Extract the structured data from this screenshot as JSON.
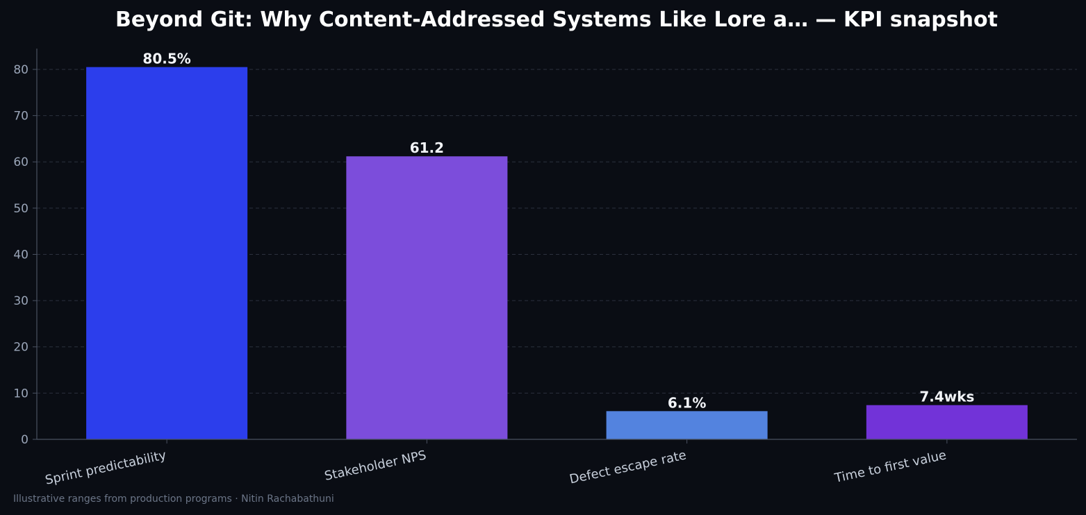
{
  "chart_data": {
    "type": "bar",
    "title": "Beyond Git: Why Content-Addressed Systems Like Lore a… — KPI snapshot",
    "categories": [
      "Sprint predictability",
      "Stakeholder NPS",
      "Defect escape rate",
      "Time to first value"
    ],
    "values": [
      80.5,
      61.2,
      6.1,
      7.4
    ],
    "value_labels": [
      "80.5%",
      "61.2",
      "6.1%",
      "7.4wks"
    ],
    "colors": [
      "#2c3eec",
      "#7c4ddb",
      "#5383df",
      "#7233d8"
    ],
    "xlabel": "",
    "ylabel": "",
    "ylim": [
      0,
      84.5
    ],
    "yticks": [
      0,
      10,
      20,
      30,
      40,
      50,
      60,
      70,
      80
    ],
    "grid": true
  },
  "footnote": "Illustrative ranges from production programs · Nitin Rachabathuni"
}
